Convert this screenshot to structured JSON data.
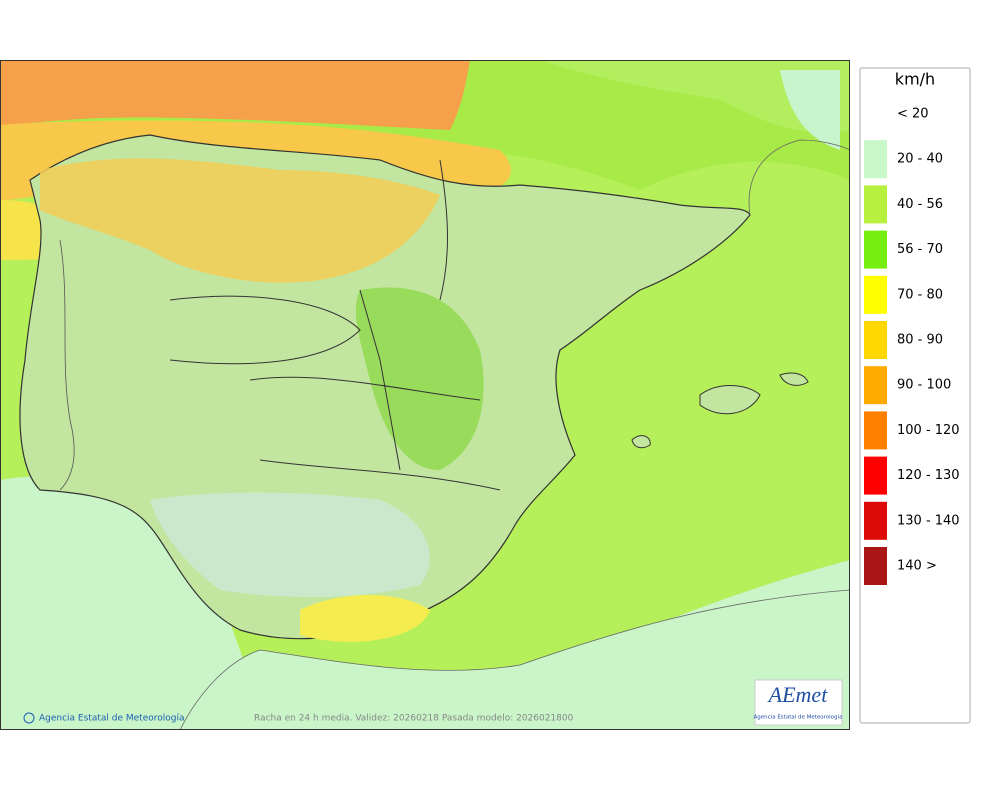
{
  "legend": {
    "title": "km/h",
    "items": [
      {
        "label": "< 20",
        "color": "#ffffff"
      },
      {
        "label": "20 - 40",
        "color": "#c8f7c8"
      },
      {
        "label": "40 - 56",
        "color": "#b8f040"
      },
      {
        "label": "56 - 70",
        "color": "#77ee11"
      },
      {
        "label": "70 - 80",
        "color": "#ffff00"
      },
      {
        "label": "80 - 90",
        "color": "#ffd700"
      },
      {
        "label": "90 - 100",
        "color": "#ffaa00"
      },
      {
        "label": "100 - 120",
        "color": "#ff8000"
      },
      {
        "label": "120 - 130",
        "color": "#ff0000"
      },
      {
        "label": "130 - 140",
        "color": "#dd0a0a"
      },
      {
        "label": "140 >",
        "color": "#aa1515"
      }
    ]
  },
  "footer": {
    "credit": "Agencia Estatal de Meteorología",
    "caption": "Racha en 24 h media. Validez: 20260218 Pasada modelo: 2026021800"
  },
  "logo": {
    "name": "AEmet",
    "subtitle": "Agencia Estatal de Meteorología"
  }
}
